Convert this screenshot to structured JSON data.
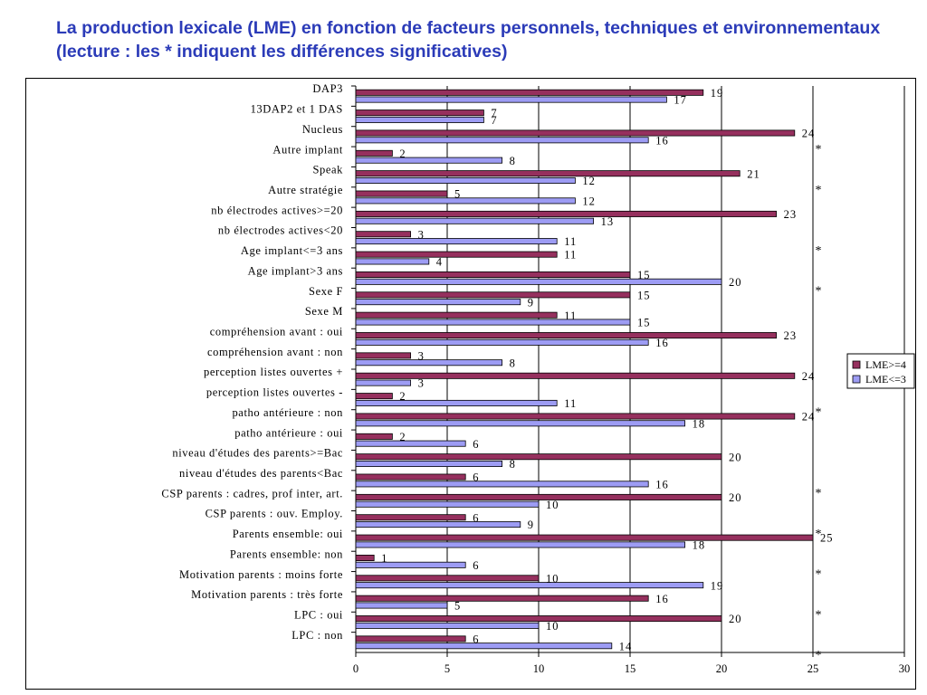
{
  "slide": {
    "title": "La production lexicale (LME) en fonction de facteurs personnels, techniques et environnementaux (lecture : les * indiquent les différences significatives)"
  },
  "colors": {
    "series_high": "#96305e",
    "series_low": "#9d9cf4",
    "gridline": "#000000"
  },
  "chart_data": {
    "type": "bar",
    "orientation": "horizontal",
    "title": "",
    "xlabel": "",
    "ylabel": "",
    "xlim": [
      0,
      30
    ],
    "x_ticks": [
      0,
      5,
      10,
      15,
      20,
      25,
      30
    ],
    "grid": "vertical",
    "legend_position": "right",
    "categories": [
      "DAP3",
      "13DAP2 et 1 DAS",
      "Nucleus",
      "Autre implant",
      "Speak",
      "Autre stratégie",
      "nb électrodes actives>=20",
      "nb électrodes actives<20",
      "Age implant<=3 ans",
      "Age implant>3 ans",
      "Sexe F",
      "Sexe M",
      "compréhension avant : oui",
      "compréhension avant : non",
      "perception listes ouvertes +",
      "perception listes ouvertes -",
      "patho antérieure : non",
      "patho antérieure : oui",
      "niveau d'études des parents>=Bac",
      "niveau d'études des parents<Bac",
      "CSP parents : cadres, prof inter, art.",
      "CSP parents : ouv. Employ.",
      "Parents ensemble: oui",
      "Parents ensemble: non",
      "Motivation parents : moins forte",
      "Motivation parents : très forte",
      "LPC : oui",
      "LPC : non"
    ],
    "series": [
      {
        "name": "LME>=4",
        "values": [
          19,
          7,
          24,
          2,
          21,
          5,
          23,
          3,
          11,
          15,
          15,
          11,
          23,
          3,
          24,
          2,
          24,
          2,
          20,
          6,
          20,
          6,
          25,
          1,
          10,
          16,
          20,
          6
        ]
      },
      {
        "name": "LME<=3",
        "values": [
          17,
          7,
          16,
          8,
          12,
          12,
          13,
          11,
          4,
          20,
          9,
          15,
          16,
          8,
          3,
          11,
          18,
          6,
          8,
          16,
          10,
          9,
          18,
          6,
          19,
          5,
          10,
          14
        ]
      }
    ],
    "significance_marker": "*",
    "significant_after_category": [
      2,
      4,
      7,
      9,
      15,
      19,
      21,
      23,
      25,
      27
    ]
  }
}
